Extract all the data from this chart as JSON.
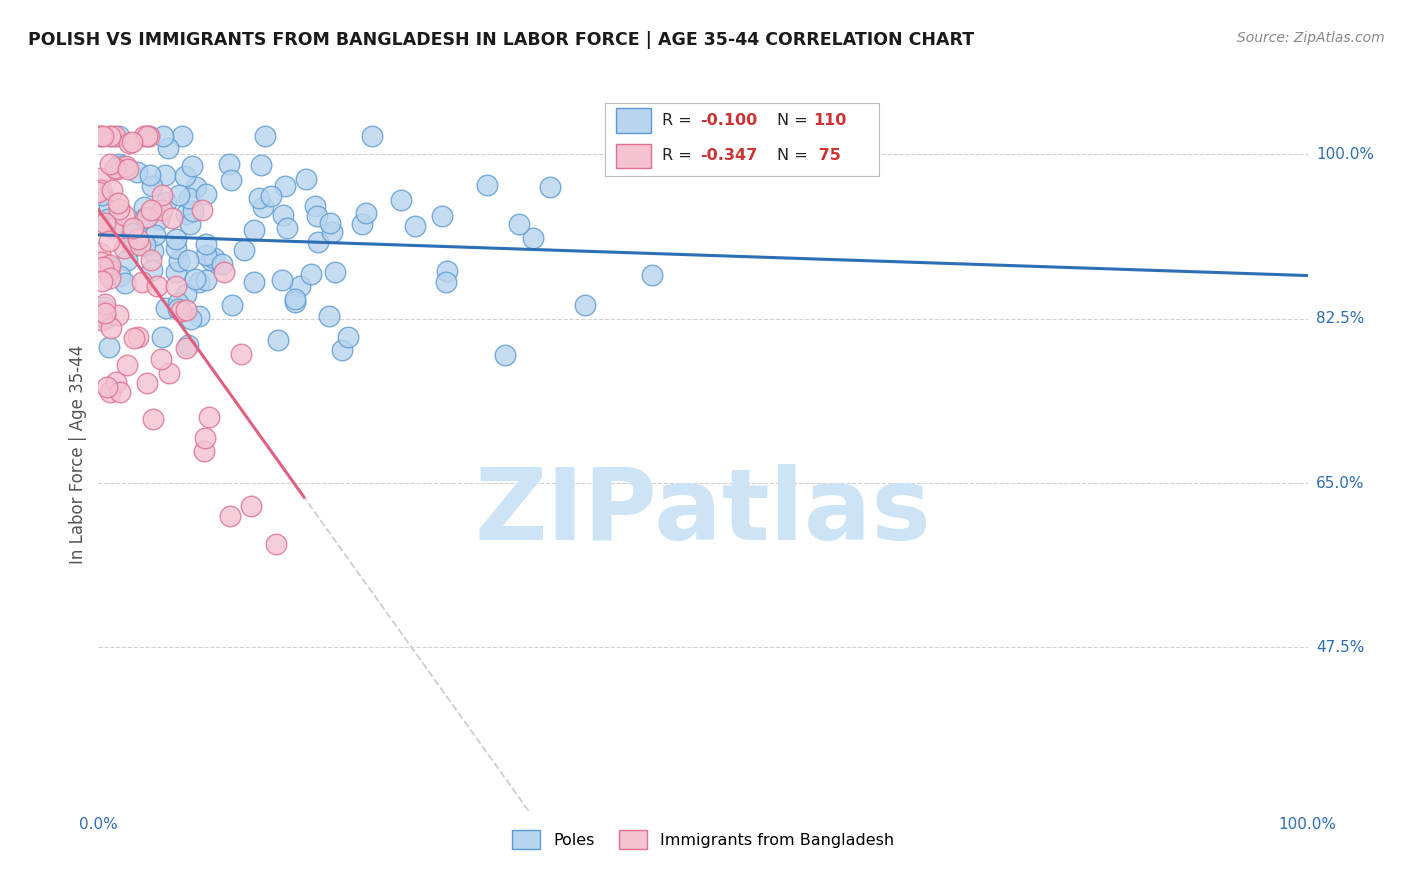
{
  "title": "POLISH VS IMMIGRANTS FROM BANGLADESH IN LABOR FORCE | AGE 35-44 CORRELATION CHART",
  "source": "Source: ZipAtlas.com",
  "ylabel": "In Labor Force | Age 35-44",
  "xlim": [
    0,
    1
  ],
  "ylim": [
    0.3,
    1.06
  ],
  "yticks": [
    0.475,
    0.65,
    0.825,
    1.0
  ],
  "ytick_labels": [
    "47.5%",
    "65.0%",
    "82.5%",
    "100.0%"
  ],
  "xticks": [
    0.0,
    0.25,
    0.5,
    0.75,
    1.0
  ],
  "xtick_labels": [
    "0.0%",
    "",
    "",
    "",
    "100.0%"
  ],
  "bg_color": "#ffffff",
  "grid_color": "#d0d0d0",
  "poles_color": "#b8d4ee",
  "poles_edge_color": "#5b9bd5",
  "bangladesh_color": "#f4c2d0",
  "bangladesh_edge_color": "#e07090",
  "trend_poles_color": "#2e6eb5",
  "poles_label": "Poles",
  "bangladesh_label": "Immigrants from Bangladesh",
  "N_poles": 110,
  "N_bangladesh": 75,
  "R_poles": -0.1,
  "R_bangladesh": -0.347,
  "tick_color": "#2e6eb5",
  "watermark_text": "ZIPatlas",
  "watermark_color": "#cce4f5"
}
